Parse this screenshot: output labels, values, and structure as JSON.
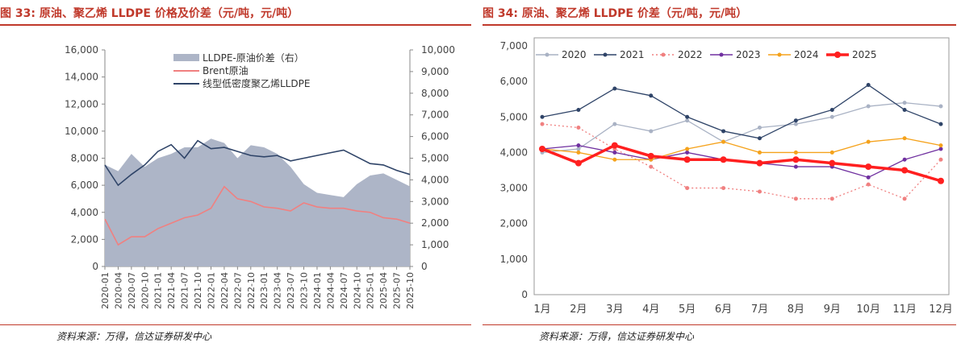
{
  "left": {
    "title": "图 33: 原油、聚乙烯 LLDPE 价格及价差（元/吨，元/吨）",
    "source": "资料来源：万得，信达证券研发中心",
    "chart_data": {
      "type": "area+line",
      "x_ticks": [
        "2020-01",
        "2020-04",
        "2020-07",
        "2020-10",
        "2021-01",
        "2021-04",
        "2021-07",
        "2021-10",
        "2022-01",
        "2022-04",
        "2022-07",
        "2022-10",
        "2023-01",
        "2023-04",
        "2023-07",
        "2023-10",
        "2024-01",
        "2024-04",
        "2024-07",
        "2024-10",
        "2025-01",
        "2025-04",
        "2025-07",
        "2025-10"
      ],
      "y_left": {
        "min": 0,
        "max": 16000,
        "ticks": [
          "0",
          "2,000",
          "4,000",
          "6,000",
          "8,000",
          "10,000",
          "12,000",
          "14,000",
          "16,000"
        ]
      },
      "y_right": {
        "min": 0,
        "max": 10000,
        "ticks": [
          "0",
          "1,000",
          "2,000",
          "3,000",
          "4,000",
          "5,000",
          "6,000",
          "7,000",
          "8,000",
          "9,000",
          "10,000"
        ]
      },
      "legend_position": "top-right",
      "series": [
        {
          "name": "LLDPE-原油价差（右）",
          "kind": "area",
          "axis": "right",
          "color": "#adb5c7",
          "values": [
            4700,
            4400,
            5200,
            4600,
            5000,
            5200,
            5500,
            5500,
            5900,
            5700,
            5000,
            5600,
            5500,
            5200,
            4600,
            3800,
            3400,
            3300,
            3200,
            3800,
            4200,
            4300,
            4000,
            3700
          ]
        },
        {
          "name": "Brent原油",
          "kind": "line",
          "axis": "left",
          "color": "#f08080",
          "values": [
            3500,
            1600,
            2200,
            2200,
            2800,
            3200,
            3600,
            3800,
            4300,
            5900,
            5000,
            4800,
            4400,
            4300,
            4100,
            4700,
            4400,
            4300,
            4300,
            4100,
            4000,
            3600,
            3500,
            3200
          ]
        },
        {
          "name": "线型低密度聚乙烯LLDPE",
          "kind": "line",
          "axis": "left",
          "color": "#2f4468",
          "values": [
            7500,
            6000,
            6800,
            7500,
            8500,
            9000,
            8000,
            9300,
            8700,
            8800,
            8500,
            8200,
            8100,
            8200,
            7800,
            8000,
            8200,
            8400,
            8600,
            8100,
            7600,
            7500,
            7100,
            6800
          ]
        }
      ]
    }
  },
  "right": {
    "title": "图 34: 原油、聚乙烯 LLDPE 价差（元/吨，元/吨）",
    "source": "资料来源：万得，信达证券研发中心",
    "chart_data": {
      "type": "line",
      "x_ticks": [
        "1月",
        "2月",
        "3月",
        "4月",
        "5月",
        "6月",
        "7月",
        "8月",
        "9月",
        "10月",
        "11月",
        "12月"
      ],
      "y": {
        "min": 0,
        "max": 7000,
        "ticks": [
          "0",
          "1,000",
          "2,000",
          "3,000",
          "4,000",
          "5,000",
          "6,000",
          "7,000"
        ]
      },
      "legend_position": "top",
      "series": [
        {
          "name": "2020",
          "color": "#a9b2c4",
          "values": [
            4000,
            4100,
            4800,
            4600,
            4900,
            4300,
            4700,
            4800,
            5000,
            5300,
            5400,
            5300
          ]
        },
        {
          "name": "2021",
          "color": "#2f4468",
          "values": [
            5000,
            5200,
            5800,
            5600,
            5000,
            4600,
            4400,
            4900,
            5200,
            5900,
            5200,
            4800
          ]
        },
        {
          "name": "2022",
          "color": "#f08080",
          "values": [
            4800,
            4700,
            4100,
            3600,
            3000,
            3000,
            2900,
            2700,
            2700,
            3100,
            2700,
            3800
          ]
        },
        {
          "name": "2023",
          "color": "#7030a0",
          "values": [
            4100,
            4200,
            4000,
            3800,
            4000,
            3800,
            3700,
            3600,
            3600,
            3300,
            3800,
            4100
          ]
        },
        {
          "name": "2024",
          "color": "#f5a21b",
          "values": [
            4100,
            4000,
            3800,
            3800,
            4100,
            4300,
            4000,
            4000,
            4000,
            4300,
            4400,
            4200
          ]
        },
        {
          "name": "2025",
          "color": "#ff1f1f",
          "values": [
            4100,
            3700,
            4200,
            3900,
            3800,
            3800,
            3700,
            3800,
            3700,
            3600,
            3500,
            3200
          ]
        }
      ]
    }
  }
}
